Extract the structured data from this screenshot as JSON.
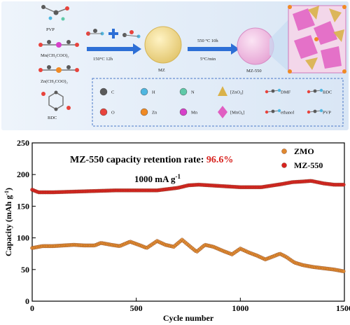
{
  "scheme": {
    "reagents": [
      "PVP",
      "Mn(CH₃COO)₂",
      "Zn(CH₃COO)₂",
      "BDC"
    ],
    "step1_condition": "150°C 12h",
    "step2_condition_top": "550 °C   10h",
    "step2_condition_bottom": "5°C/min",
    "product1": "MZ",
    "product2": "MZ-550",
    "legend": [
      {
        "symbol": "C",
        "color": "#5a5a5a",
        "shape": "sphere"
      },
      {
        "symbol": "H",
        "color": "#4fb6e0",
        "shape": "sphere"
      },
      {
        "symbol": "N",
        "color": "#5fc9a8",
        "shape": "sphere"
      },
      {
        "symbol": "[ZnO₄]",
        "color": "#d9b24a",
        "shape": "tetrahedron-icon"
      },
      {
        "symbol": "DMF",
        "color": "#888888",
        "shape": "molecule-icon"
      },
      {
        "symbol": "BDC",
        "color": "#888888",
        "shape": "molecule-icon"
      },
      {
        "symbol": "O",
        "color": "#e8433c",
        "shape": "sphere"
      },
      {
        "symbol": "Zn",
        "color": "#f08a24",
        "shape": "sphere"
      },
      {
        "symbol": "Mn",
        "color": "#d640c9",
        "shape": "sphere"
      },
      {
        "symbol": "[MnO₆]",
        "color": "#e05fc2",
        "shape": "octahedron-icon"
      },
      {
        "symbol": "ethanol",
        "color": "#888888",
        "shape": "molecule-icon"
      },
      {
        "symbol": "PVP",
        "color": "#888888",
        "shape": "molecule-icon"
      }
    ]
  },
  "chart_data": {
    "type": "scatter",
    "annotation_prefix": "MZ-550 capacity retention rate: ",
    "annotation_value": "96.6%",
    "current_density": "1000 mA g",
    "current_density_sup": "-1",
    "xlabel": "Cycle number",
    "ylabel": "Capacity (mAh g",
    "ylabel_sup": "-1",
    "ylabel_end": ")",
    "xlim": [
      0,
      1500
    ],
    "ylim": [
      0,
      250
    ],
    "xticks": [
      0,
      500,
      1000,
      1500
    ],
    "yticks": [
      0,
      50,
      100,
      150,
      200,
      250
    ],
    "legend_position": "top-right",
    "series": [
      {
        "name": "ZMO",
        "color": "#e0892f",
        "points": [
          [
            0,
            84
          ],
          [
            50,
            87
          ],
          [
            100,
            87
          ],
          [
            150,
            88
          ],
          [
            200,
            89
          ],
          [
            250,
            88
          ],
          [
            300,
            88
          ],
          [
            330,
            92
          ],
          [
            380,
            89
          ],
          [
            420,
            87
          ],
          [
            470,
            94
          ],
          [
            520,
            88
          ],
          [
            550,
            84
          ],
          [
            600,
            95
          ],
          [
            640,
            89
          ],
          [
            680,
            86
          ],
          [
            720,
            97
          ],
          [
            760,
            86
          ],
          [
            790,
            78
          ],
          [
            830,
            89
          ],
          [
            870,
            86
          ],
          [
            920,
            79
          ],
          [
            960,
            74
          ],
          [
            1000,
            83
          ],
          [
            1040,
            77
          ],
          [
            1080,
            72
          ],
          [
            1120,
            66
          ],
          [
            1160,
            71
          ],
          [
            1190,
            75
          ],
          [
            1220,
            70
          ],
          [
            1260,
            61
          ],
          [
            1300,
            57
          ],
          [
            1350,
            54
          ],
          [
            1400,
            52
          ],
          [
            1450,
            50
          ],
          [
            1500,
            47
          ]
        ]
      },
      {
        "name": "MZ-550",
        "color": "#d8231f",
        "points": [
          [
            0,
            176
          ],
          [
            30,
            172
          ],
          [
            100,
            172
          ],
          [
            200,
            173
          ],
          [
            300,
            174
          ],
          [
            400,
            175
          ],
          [
            500,
            175
          ],
          [
            600,
            175
          ],
          [
            700,
            179
          ],
          [
            750,
            183
          ],
          [
            800,
            184
          ],
          [
            900,
            182
          ],
          [
            1000,
            180
          ],
          [
            1100,
            180
          ],
          [
            1200,
            185
          ],
          [
            1250,
            188
          ],
          [
            1300,
            189
          ],
          [
            1340,
            190
          ],
          [
            1400,
            186
          ],
          [
            1450,
            184
          ],
          [
            1500,
            184
          ]
        ]
      }
    ]
  }
}
